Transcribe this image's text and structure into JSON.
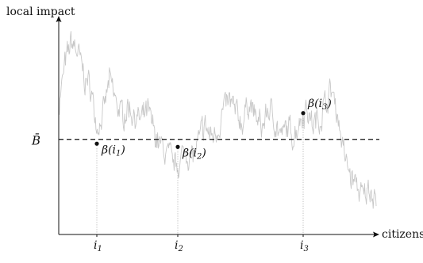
{
  "diagram": {
    "y_axis_label": "local impact",
    "x_axis_label": "citizens",
    "threshold": {
      "label": "B̄",
      "value": 0.59
    },
    "x_range": [
      0,
      1
    ],
    "y_range": [
      0,
      1.36
    ],
    "markers": [
      {
        "tick": "i",
        "sub": "1",
        "label_base": "β(i",
        "label_sub": "1",
        "label_tail": ")",
        "x": 0.12,
        "y": 0.565
      },
      {
        "tick": "i",
        "sub": "2",
        "label_base": "β(i",
        "label_sub": "2",
        "label_tail": ")",
        "x": 0.375,
        "y": 0.545
      },
      {
        "tick": "i",
        "sub": "3",
        "label_base": "β(i",
        "label_sub": "3",
        "label_tail": ")",
        "x": 0.77,
        "y": 0.755
      }
    ],
    "curve_anchors": [
      [
        0.0,
        0.8
      ],
      [
        0.02,
        1.05
      ],
      [
        0.04,
        1.2
      ],
      [
        0.06,
        1.13
      ],
      [
        0.08,
        0.98
      ],
      [
        0.1,
        0.92
      ],
      [
        0.12,
        0.68
      ],
      [
        0.14,
        0.74
      ],
      [
        0.16,
        0.96
      ],
      [
        0.18,
        0.82
      ],
      [
        0.2,
        0.74
      ],
      [
        0.22,
        0.8
      ],
      [
        0.24,
        0.74
      ],
      [
        0.26,
        0.7
      ],
      [
        0.28,
        0.76
      ],
      [
        0.3,
        0.64
      ],
      [
        0.32,
        0.55
      ],
      [
        0.34,
        0.5
      ],
      [
        0.36,
        0.43
      ],
      [
        0.38,
        0.45
      ],
      [
        0.4,
        0.52
      ],
      [
        0.42,
        0.48
      ],
      [
        0.44,
        0.56
      ],
      [
        0.46,
        0.68
      ],
      [
        0.48,
        0.6
      ],
      [
        0.5,
        0.66
      ],
      [
        0.52,
        0.78
      ],
      [
        0.54,
        0.82
      ],
      [
        0.56,
        0.74
      ],
      [
        0.58,
        0.7
      ],
      [
        0.6,
        0.84
      ],
      [
        0.62,
        0.72
      ],
      [
        0.64,
        0.66
      ],
      [
        0.66,
        0.78
      ],
      [
        0.68,
        0.72
      ],
      [
        0.7,
        0.6
      ],
      [
        0.72,
        0.66
      ],
      [
        0.74,
        0.62
      ],
      [
        0.76,
        0.72
      ],
      [
        0.78,
        0.8
      ],
      [
        0.8,
        0.68
      ],
      [
        0.82,
        0.72
      ],
      [
        0.84,
        0.82
      ],
      [
        0.86,
        0.9
      ],
      [
        0.88,
        0.74
      ],
      [
        0.9,
        0.48
      ],
      [
        0.92,
        0.36
      ],
      [
        0.94,
        0.3
      ],
      [
        0.96,
        0.22
      ],
      [
        0.98,
        0.3
      ],
      [
        1.0,
        0.24
      ]
    ],
    "colors": {
      "curve": "#c8c8c8",
      "axis": "#111111",
      "threshold": "#111111",
      "guide": "#9a9a9a"
    }
  }
}
